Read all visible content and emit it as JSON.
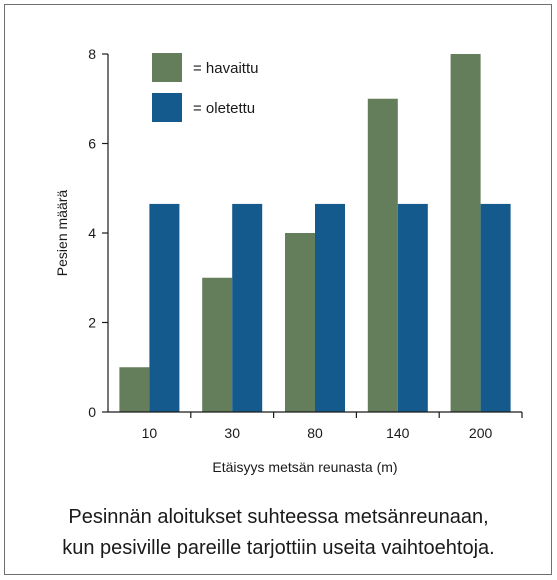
{
  "chart_data": {
    "type": "bar",
    "categories": [
      "10",
      "30",
      "80",
      "140",
      "200"
    ],
    "series": [
      {
        "name": "= havaittu",
        "values": [
          1,
          3,
          4,
          7,
          8
        ],
        "color": "#647d5b"
      },
      {
        "name": "= oletettu",
        "values": [
          4.65,
          4.65,
          4.65,
          4.65,
          4.65
        ],
        "color": "#145a8d"
      }
    ],
    "xlabel": "Etäisyys metsän reunasta (m)",
    "ylabel": "Pesien määrä",
    "ylim": [
      0,
      8
    ],
    "yticks": [
      0,
      2,
      4,
      6,
      8
    ],
    "grid": false,
    "legend_position": "top-left"
  },
  "caption": {
    "line1": "Pesinnän aloitukset suhteessa metsänreunaan,",
    "line2": "kun pesiville pareille tarjottiin useita vaihtoehtoja."
  }
}
